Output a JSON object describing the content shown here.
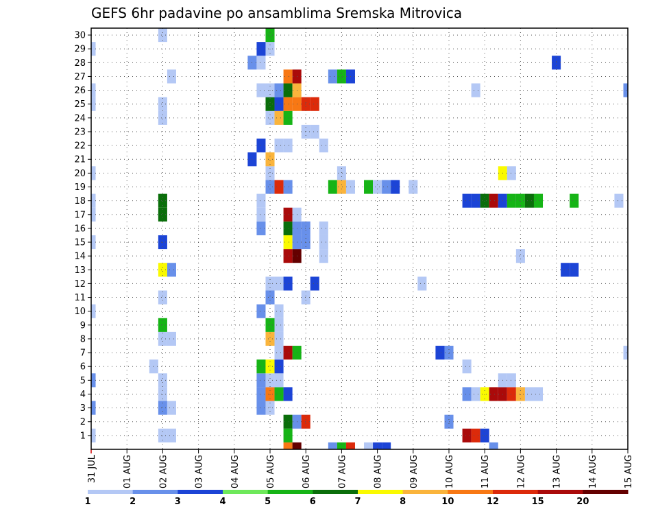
{
  "chart_data": {
    "type": "heatmap",
    "title": "GEFS 6hr padavine po ansamblima Sremska Mitrovica",
    "x_tick_labels": [
      "31 JUL",
      "01 AUG",
      "02 AUG",
      "03 AUG",
      "04 AUG",
      "05 AUG",
      "06 AUG",
      "07 AUG",
      "08 AUG",
      "09 AUG",
      "10 AUG",
      "11 AUG",
      "12 AUG",
      "13 AUG",
      "14 AUG",
      "15 AUG"
    ],
    "y_tick_labels": [
      "1",
      "2",
      "3",
      "4",
      "5",
      "6",
      "7",
      "8",
      "9",
      "10",
      "11",
      "12",
      "13",
      "14",
      "15",
      "16",
      "17",
      "18",
      "19",
      "20",
      "21",
      "22",
      "23",
      "24",
      "25",
      "26",
      "27",
      "28",
      "29",
      "30"
    ],
    "x_range_steps": [
      0,
      60
    ],
    "y_range_members": [
      0,
      30
    ],
    "grid": true,
    "legend_position": "bottom",
    "legend": {
      "labels": [
        "1",
        "2",
        "3",
        "4",
        "5",
        "6",
        "7",
        "8",
        "10",
        "12",
        "15",
        "20"
      ],
      "colors": [
        "#b4c8f5",
        "#6890ea",
        "#1c44d6",
        "#6ee85a",
        "#16b416",
        "#0a6e0a",
        "#fafa00",
        "#fab43c",
        "#f87814",
        "#dc2a0a",
        "#aa0a0a",
        "#640000"
      ]
    },
    "cells": [
      {
        "x": 0,
        "y": 1,
        "v": 1
      },
      {
        "x": 0,
        "y": 3,
        "v": 2
      },
      {
        "x": 0,
        "y": 5,
        "v": 2
      },
      {
        "x": 0,
        "y": 10,
        "v": 1
      },
      {
        "x": 0,
        "y": 15,
        "v": 1
      },
      {
        "x": 0,
        "y": 17,
        "v": 1
      },
      {
        "x": 0,
        "y": 18,
        "v": 1
      },
      {
        "x": 0,
        "y": 20,
        "v": 1
      },
      {
        "x": 0,
        "y": 25,
        "v": 1
      },
      {
        "x": 0,
        "y": 26,
        "v": 1
      },
      {
        "x": 0,
        "y": 29,
        "v": 1
      },
      {
        "x": 7,
        "y": 6,
        "v": 1
      },
      {
        "x": 8,
        "y": 1,
        "v": 1
      },
      {
        "x": 9,
        "y": 1,
        "v": 1
      },
      {
        "x": 8,
        "y": 3,
        "v": 2
      },
      {
        "x": 9,
        "y": 3,
        "v": 1
      },
      {
        "x": 8,
        "y": 4,
        "v": 1
      },
      {
        "x": 8,
        "y": 5,
        "v": 1
      },
      {
        "x": 8,
        "y": 8,
        "v": 1
      },
      {
        "x": 9,
        "y": 8,
        "v": 1
      },
      {
        "x": 8,
        "y": 9,
        "v": 5
      },
      {
        "x": 8,
        "y": 11,
        "v": 1
      },
      {
        "x": 8,
        "y": 13,
        "v": 7
      },
      {
        "x": 9,
        "y": 13,
        "v": 2
      },
      {
        "x": 8,
        "y": 15,
        "v": 3
      },
      {
        "x": 8,
        "y": 17,
        "v": 6
      },
      {
        "x": 8,
        "y": 18,
        "v": 6
      },
      {
        "x": 8,
        "y": 24,
        "v": 1
      },
      {
        "x": 8,
        "y": 25,
        "v": 1
      },
      {
        "x": 8,
        "y": 30,
        "v": 1
      },
      {
        "x": 9,
        "y": 27,
        "v": 1
      },
      {
        "x": 18,
        "y": 21,
        "v": 3
      },
      {
        "x": 18,
        "y": 28,
        "v": 2
      },
      {
        "x": 19,
        "y": 3,
        "v": 2
      },
      {
        "x": 19,
        "y": 4,
        "v": 2
      },
      {
        "x": 19,
        "y": 5,
        "v": 2
      },
      {
        "x": 19,
        "y": 6,
        "v": 5
      },
      {
        "x": 19,
        "y": 10,
        "v": 2
      },
      {
        "x": 19,
        "y": 16,
        "v": 2
      },
      {
        "x": 19,
        "y": 17,
        "v": 1
      },
      {
        "x": 19,
        "y": 18,
        "v": 1
      },
      {
        "x": 19,
        "y": 22,
        "v": 3
      },
      {
        "x": 19,
        "y": 26,
        "v": 1
      },
      {
        "x": 19,
        "y": 28,
        "v": 1
      },
      {
        "x": 19,
        "y": 29,
        "v": 3
      },
      {
        "x": 20,
        "y": 3,
        "v": 1
      },
      {
        "x": 20,
        "y": 4,
        "v": 10
      },
      {
        "x": 20,
        "y": 5,
        "v": 1
      },
      {
        "x": 20,
        "y": 6,
        "v": 7
      },
      {
        "x": 20,
        "y": 8,
        "v": 8
      },
      {
        "x": 20,
        "y": 9,
        "v": 5
      },
      {
        "x": 20,
        "y": 11,
        "v": 2
      },
      {
        "x": 20,
        "y": 12,
        "v": 1
      },
      {
        "x": 20,
        "y": 19,
        "v": 2
      },
      {
        "x": 20,
        "y": 20,
        "v": 1
      },
      {
        "x": 20,
        "y": 21,
        "v": 8
      },
      {
        "x": 20,
        "y": 24,
        "v": 1
      },
      {
        "x": 20,
        "y": 25,
        "v": 6
      },
      {
        "x": 20,
        "y": 26,
        "v": 1
      },
      {
        "x": 20,
        "y": 29,
        "v": 1
      },
      {
        "x": 20,
        "y": 30,
        "v": 5
      },
      {
        "x": 21,
        "y": 4,
        "v": 5
      },
      {
        "x": 21,
        "y": 5,
        "v": 1
      },
      {
        "x": 21,
        "y": 6,
        "v": 3
      },
      {
        "x": 21,
        "y": 7,
        "v": 1
      },
      {
        "x": 21,
        "y": 8,
        "v": 1
      },
      {
        "x": 21,
        "y": 9,
        "v": 1
      },
      {
        "x": 21,
        "y": 10,
        "v": 1
      },
      {
        "x": 21,
        "y": 12,
        "v": 1
      },
      {
        "x": 21,
        "y": 19,
        "v": 12
      },
      {
        "x": 21,
        "y": 22,
        "v": 1
      },
      {
        "x": 21,
        "y": 24,
        "v": 8
      },
      {
        "x": 21,
        "y": 25,
        "v": 3
      },
      {
        "x": 21,
        "y": 26,
        "v": 2
      },
      {
        "x": 22,
        "y": 0,
        "v": 10
      },
      {
        "x": 22,
        "y": 1,
        "v": 5
      },
      {
        "x": 22,
        "y": 2,
        "v": 6
      },
      {
        "x": 22,
        "y": 4,
        "v": 3
      },
      {
        "x": 22,
        "y": 7,
        "v": 15
      },
      {
        "x": 22,
        "y": 12,
        "v": 3
      },
      {
        "x": 22,
        "y": 14,
        "v": 15
      },
      {
        "x": 22,
        "y": 15,
        "v": 7
      },
      {
        "x": 22,
        "y": 16,
        "v": 6
      },
      {
        "x": 22,
        "y": 17,
        "v": 15
      },
      {
        "x": 22,
        "y": 19,
        "v": 2
      },
      {
        "x": 22,
        "y": 22,
        "v": 1
      },
      {
        "x": 22,
        "y": 24,
        "v": 5
      },
      {
        "x": 22,
        "y": 25,
        "v": 10
      },
      {
        "x": 22,
        "y": 26,
        "v": 6
      },
      {
        "x": 22,
        "y": 27,
        "v": 10
      },
      {
        "x": 23,
        "y": 0,
        "v": 20
      },
      {
        "x": 23,
        "y": 2,
        "v": 2
      },
      {
        "x": 23,
        "y": 7,
        "v": 5
      },
      {
        "x": 23,
        "y": 14,
        "v": 20
      },
      {
        "x": 23,
        "y": 15,
        "v": 2
      },
      {
        "x": 23,
        "y": 16,
        "v": 2
      },
      {
        "x": 23,
        "y": 17,
        "v": 1
      },
      {
        "x": 23,
        "y": 25,
        "v": 10
      },
      {
        "x": 23,
        "y": 26,
        "v": 8
      },
      {
        "x": 23,
        "y": 27,
        "v": 15
      },
      {
        "x": 24,
        "y": 2,
        "v": 12
      },
      {
        "x": 24,
        "y": 11,
        "v": 1
      },
      {
        "x": 24,
        "y": 15,
        "v": 2
      },
      {
        "x": 24,
        "y": 16,
        "v": 2
      },
      {
        "x": 24,
        "y": 23,
        "v": 1
      },
      {
        "x": 24,
        "y": 25,
        "v": 12
      },
      {
        "x": 25,
        "y": 12,
        "v": 3
      },
      {
        "x": 25,
        "y": 23,
        "v": 1
      },
      {
        "x": 25,
        "y": 25,
        "v": 12
      },
      {
        "x": 26,
        "y": 14,
        "v": 1
      },
      {
        "x": 26,
        "y": 15,
        "v": 1
      },
      {
        "x": 26,
        "y": 16,
        "v": 1
      },
      {
        "x": 26,
        "y": 22,
        "v": 1
      },
      {
        "x": 27,
        "y": 0,
        "v": 2
      },
      {
        "x": 27,
        "y": 19,
        "v": 5
      },
      {
        "x": 27,
        "y": 27,
        "v": 2
      },
      {
        "x": 28,
        "y": 0,
        "v": 5
      },
      {
        "x": 28,
        "y": 19,
        "v": 8
      },
      {
        "x": 28,
        "y": 20,
        "v": 1
      },
      {
        "x": 28,
        "y": 27,
        "v": 5
      },
      {
        "x": 29,
        "y": 0,
        "v": 12
      },
      {
        "x": 29,
        "y": 19,
        "v": 1
      },
      {
        "x": 29,
        "y": 27,
        "v": 3
      },
      {
        "x": 31,
        "y": 0,
        "v": 1
      },
      {
        "x": 31,
        "y": 19,
        "v": 5
      },
      {
        "x": 32,
        "y": 0,
        "v": 3
      },
      {
        "x": 32,
        "y": 19,
        "v": 1
      },
      {
        "x": 33,
        "y": 0,
        "v": 3
      },
      {
        "x": 33,
        "y": 19,
        "v": 2
      },
      {
        "x": 34,
        "y": 19,
        "v": 3
      },
      {
        "x": 36,
        "y": 19,
        "v": 1
      },
      {
        "x": 37,
        "y": 12,
        "v": 1
      },
      {
        "x": 39,
        "y": 7,
        "v": 3
      },
      {
        "x": 40,
        "y": 2,
        "v": 2
      },
      {
        "x": 40,
        "y": 7,
        "v": 2
      },
      {
        "x": 42,
        "y": 1,
        "v": 15
      },
      {
        "x": 42,
        "y": 4,
        "v": 2
      },
      {
        "x": 42,
        "y": 6,
        "v": 1
      },
      {
        "x": 42,
        "y": 18,
        "v": 3
      },
      {
        "x": 43,
        "y": 1,
        "v": 12
      },
      {
        "x": 43,
        "y": 4,
        "v": 1
      },
      {
        "x": 43,
        "y": 18,
        "v": 3
      },
      {
        "x": 43,
        "y": 26,
        "v": 1
      },
      {
        "x": 44,
        "y": 1,
        "v": 3
      },
      {
        "x": 44,
        "y": 4,
        "v": 7
      },
      {
        "x": 44,
        "y": 18,
        "v": 6
      },
      {
        "x": 45,
        "y": 0,
        "v": 2
      },
      {
        "x": 45,
        "y": 4,
        "v": 15
      },
      {
        "x": 45,
        "y": 18,
        "v": 15
      },
      {
        "x": 46,
        "y": 4,
        "v": 15
      },
      {
        "x": 46,
        "y": 5,
        "v": 1
      },
      {
        "x": 46,
        "y": 18,
        "v": 3
      },
      {
        "x": 46,
        "y": 20,
        "v": 7
      },
      {
        "x": 47,
        "y": 4,
        "v": 12
      },
      {
        "x": 47,
        "y": 5,
        "v": 1
      },
      {
        "x": 47,
        "y": 18,
        "v": 5
      },
      {
        "x": 47,
        "y": 20,
        "v": 1
      },
      {
        "x": 48,
        "y": 4,
        "v": 8
      },
      {
        "x": 48,
        "y": 14,
        "v": 1
      },
      {
        "x": 48,
        "y": 18,
        "v": 5
      },
      {
        "x": 49,
        "y": 4,
        "v": 1
      },
      {
        "x": 49,
        "y": 18,
        "v": 6
      },
      {
        "x": 50,
        "y": 4,
        "v": 1
      },
      {
        "x": 50,
        "y": 18,
        "v": 5
      },
      {
        "x": 52,
        "y": 28,
        "v": 3
      },
      {
        "x": 53,
        "y": 13,
        "v": 3
      },
      {
        "x": 54,
        "y": 13,
        "v": 3
      },
      {
        "x": 54,
        "y": 18,
        "v": 5
      },
      {
        "x": 59,
        "y": 18,
        "v": 1
      },
      {
        "x": 60,
        "y": 7,
        "v": 1
      },
      {
        "x": 60,
        "y": 26,
        "v": 2
      }
    ]
  }
}
